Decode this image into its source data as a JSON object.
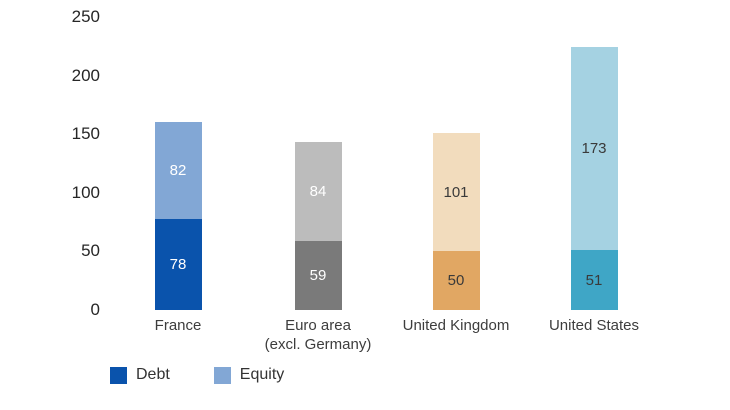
{
  "chart_data": {
    "type": "bar",
    "stacked": true,
    "title": "",
    "xlabel": "",
    "ylabel": "",
    "ylim": [
      0,
      250
    ],
    "y_ticks": [
      0,
      50,
      100,
      150,
      200,
      250
    ],
    "grid": false,
    "legend_position": "bottom-left",
    "categories": [
      {
        "lines": [
          "France"
        ]
      },
      {
        "lines": [
          "Euro area",
          "(excl. Germany)"
        ]
      },
      {
        "lines": [
          "United Kingdom"
        ]
      },
      {
        "lines": [
          "United States"
        ]
      }
    ],
    "series": [
      {
        "name": "Debt",
        "values": [
          78,
          59,
          50,
          51
        ]
      },
      {
        "name": "Equity",
        "values": [
          82,
          84,
          101,
          173
        ]
      }
    ],
    "segment_colors": [
      [
        "#0a53ac",
        "#82a7d5"
      ],
      [
        "#7a7a7a",
        "#bcbcbc"
      ],
      [
        "#e1a763",
        "#f2dcbd"
      ],
      [
        "#3fa6c6",
        "#a5d2e2"
      ]
    ],
    "value_label_colors": [
      [
        "#ffffff",
        "#ffffff"
      ],
      [
        "#ffffff",
        "#ffffff"
      ],
      [
        "#3a3a3a",
        "#3a3a3a"
      ],
      [
        "#3a3a3a",
        "#3a3a3a"
      ]
    ],
    "legend": [
      {
        "label": "Debt",
        "color": "#0a53ac"
      },
      {
        "label": "Equity",
        "color": "#82a7d5"
      }
    ]
  }
}
